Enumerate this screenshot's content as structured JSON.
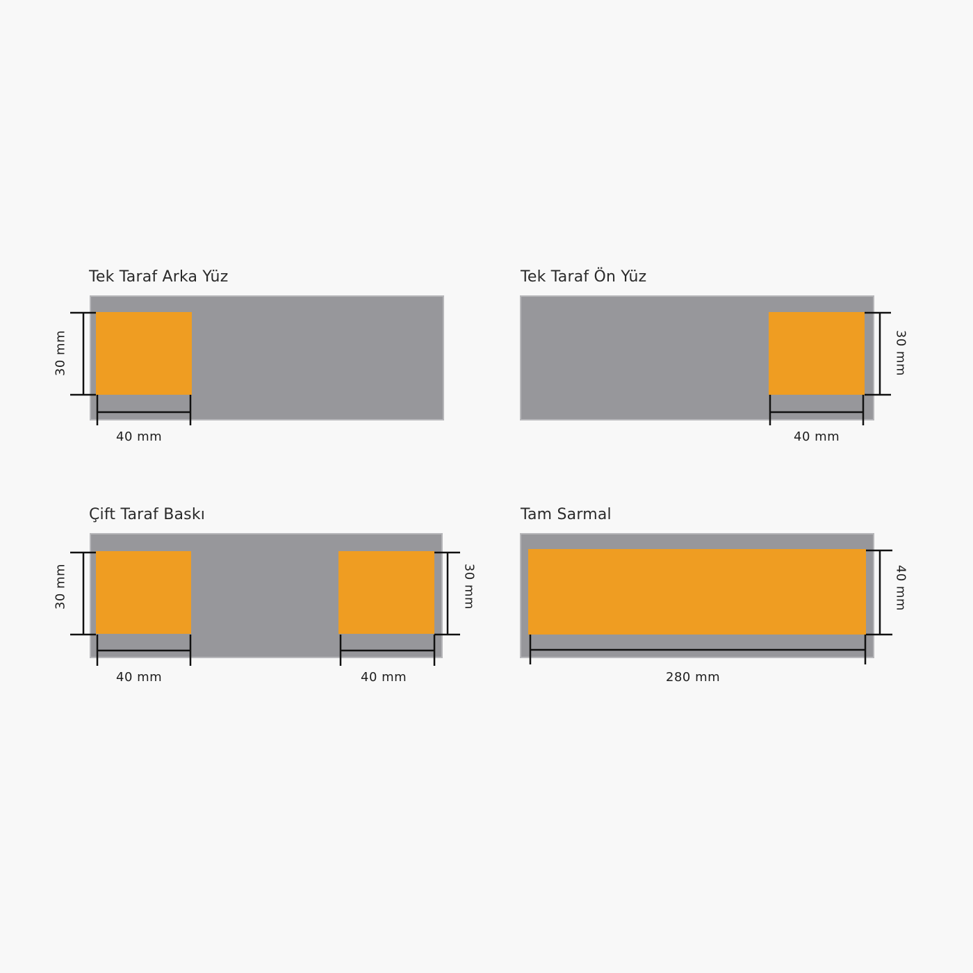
{
  "colors": {
    "background": "#f8f8f8",
    "surface": "#97979b",
    "surface_edge": "#b7b7ba",
    "print_area": "#ef9d22",
    "dimension_line": "#111111"
  },
  "panels": [
    {
      "title": "Tek Taraf Arka Yüz",
      "width_label": "40 mm",
      "height_label": "30 mm"
    },
    {
      "title": "Tek Taraf Ön Yüz",
      "width_label": "40 mm",
      "height_label": "30 mm"
    },
    {
      "title": "Çift Taraf Baskı",
      "left_width_label": "40 mm",
      "right_width_label": "40 mm",
      "left_height_label": "30 mm",
      "right_height_label": "30 mm"
    },
    {
      "title": "Tam Sarmal",
      "width_label": "280 mm",
      "height_label": "40 mm"
    }
  ]
}
